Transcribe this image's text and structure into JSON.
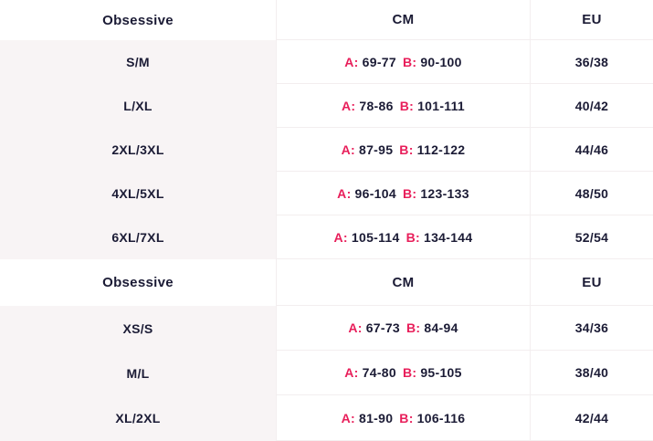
{
  "colors": {
    "accent_pink": "#e81e5a",
    "text_navy": "#1b1b35",
    "first_column_bg": "#f8f4f5",
    "divider_line": "#f3eeef",
    "background": "#ffffff"
  },
  "labels": {
    "a": "A:",
    "b": "B:"
  },
  "tables": [
    {
      "headers": {
        "col1": "Obsessive",
        "col2": "CM",
        "col3": "EU"
      },
      "rows": [
        {
          "size": "S/M",
          "a": "69-77",
          "b": "90-100",
          "eu": "36/38"
        },
        {
          "size": "L/XL",
          "a": "78-86",
          "b": "101-111",
          "eu": "40/42"
        },
        {
          "size": "2XL/3XL",
          "a": "87-95",
          "b": "112-122",
          "eu": "44/46"
        },
        {
          "size": "4XL/5XL",
          "a": "96-104",
          "b": "123-133",
          "eu": "48/50"
        },
        {
          "size": "6XL/7XL",
          "a": "105-114",
          "b": "134-144",
          "eu": "52/54"
        }
      ]
    },
    {
      "headers": {
        "col1": "Obsessive",
        "col2": "CM",
        "col3": "EU"
      },
      "rows": [
        {
          "size": "XS/S",
          "a": "67-73",
          "b": "84-94",
          "eu": "34/36"
        },
        {
          "size": "M/L",
          "a": "74-80",
          "b": "95-105",
          "eu": "38/40"
        },
        {
          "size": "XL/2XL",
          "a": "81-90",
          "b": "106-116",
          "eu": "42/44"
        }
      ]
    }
  ]
}
